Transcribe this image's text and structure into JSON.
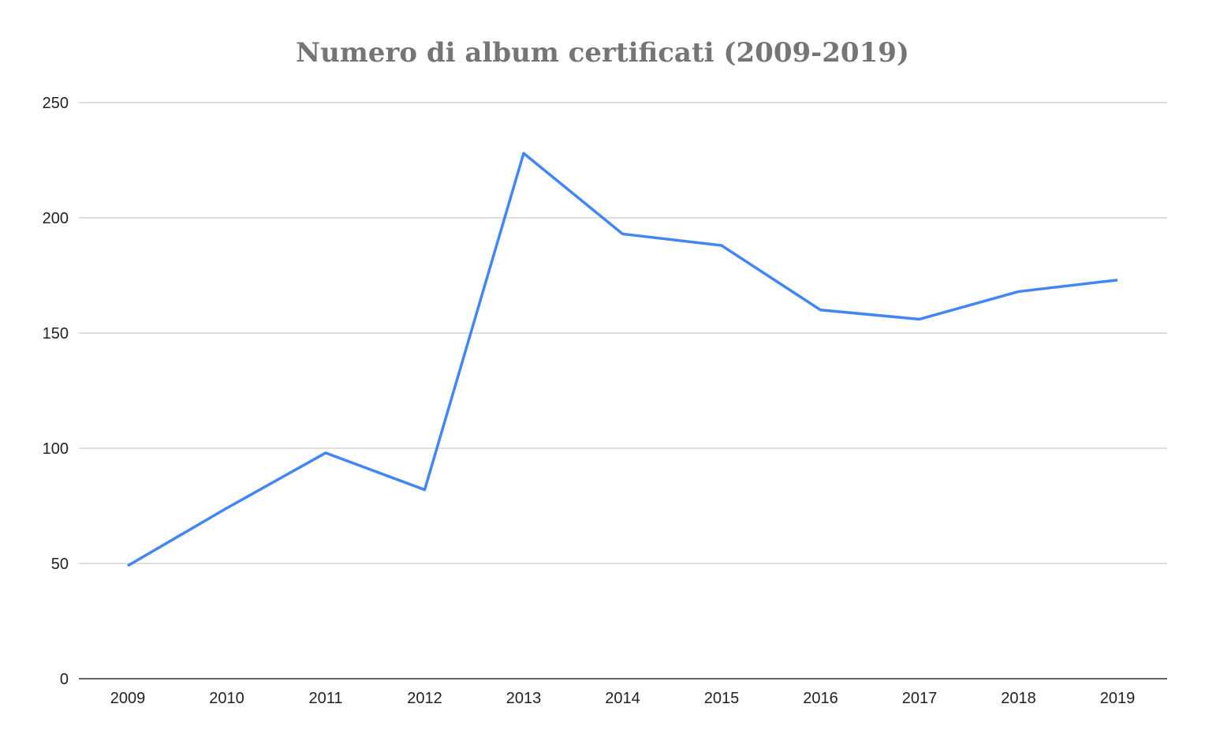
{
  "chart_data": {
    "type": "line",
    "title": "Numero di album certificati (2009-2019)",
    "xlabel": "",
    "ylabel": "",
    "categories": [
      "2009",
      "2010",
      "2011",
      "2012",
      "2013",
      "2014",
      "2015",
      "2016",
      "2017",
      "2018",
      "2019"
    ],
    "series": [
      {
        "values": [
          49,
          74,
          98,
          82,
          228,
          193,
          188,
          160,
          156,
          168,
          173
        ],
        "color": "#4285f4"
      }
    ],
    "ylim": [
      0,
      250
    ],
    "yticks": [
      0,
      50,
      100,
      150,
      200,
      250
    ],
    "grid": true,
    "legend": "none",
    "colors": {
      "line": "#4285f4",
      "grid": "#cccccc",
      "axis": "#333333",
      "title": "#757575"
    }
  }
}
